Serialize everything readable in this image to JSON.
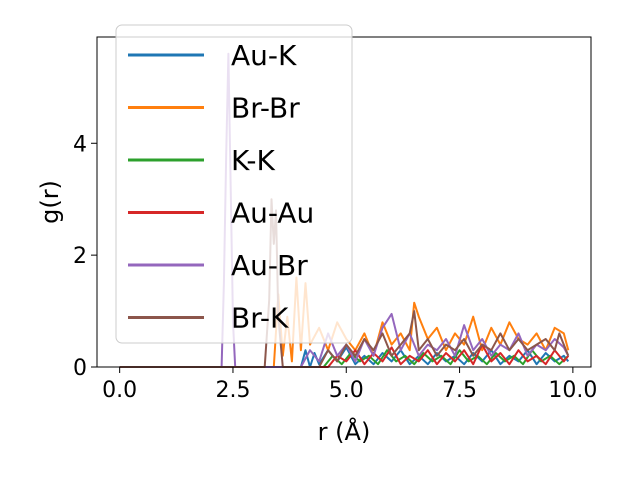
{
  "chart_data": {
    "type": "line",
    "title": "",
    "xlabel": "r (Å)",
    "ylabel": "g(r)",
    "xlim": [
      -0.5,
      10.4
    ],
    "ylim": [
      0,
      5.9
    ],
    "xticks": [
      0.0,
      2.5,
      5.0,
      7.5,
      10.0
    ],
    "xtick_labels": [
      "0.0",
      "2.5",
      "5.0",
      "7.5",
      "10.0"
    ],
    "yticks": [
      0,
      2,
      4
    ],
    "ytick_labels": [
      "0",
      "2",
      "4"
    ],
    "grid": false,
    "legend_position": "top-left",
    "series": [
      {
        "name": "Au-K",
        "color": "#1f77b4",
        "x": [
          0.0,
          4.0,
          4.1,
          4.2,
          4.3,
          4.4,
          4.6,
          4.8,
          5.0,
          5.2,
          5.4,
          5.6,
          5.8,
          6.0,
          6.2,
          6.4,
          6.6,
          6.8,
          7.0,
          7.2,
          7.4,
          7.6,
          7.8,
          8.0,
          8.2,
          8.4,
          8.6,
          8.8,
          9.0,
          9.2,
          9.4,
          9.6,
          9.8,
          9.9
        ],
        "y": [
          0.0,
          0.0,
          0.3,
          0.0,
          0.25,
          0.05,
          0.3,
          0.1,
          0.35,
          0.05,
          0.2,
          0.05,
          0.25,
          0.1,
          0.3,
          0.05,
          0.2,
          0.05,
          0.25,
          0.1,
          0.2,
          0.05,
          0.25,
          0.1,
          0.3,
          0.05,
          0.2,
          0.1,
          0.3,
          0.05,
          0.25,
          0.1,
          0.2,
          0.1
        ]
      },
      {
        "name": "Br-Br",
        "color": "#ff7f0e",
        "x": [
          0.0,
          3.4,
          3.5,
          3.6,
          3.7,
          3.8,
          3.9,
          4.0,
          4.1,
          4.2,
          4.4,
          4.6,
          4.8,
          5.0,
          5.2,
          5.4,
          5.6,
          5.8,
          6.0,
          6.2,
          6.4,
          6.5,
          6.6,
          6.8,
          7.0,
          7.2,
          7.4,
          7.6,
          7.8,
          8.0,
          8.2,
          8.4,
          8.6,
          8.8,
          9.0,
          9.2,
          9.4,
          9.6,
          9.8,
          9.9
        ],
        "y": [
          0.0,
          0.0,
          1.3,
          0.2,
          0.9,
          0.1,
          1.6,
          0.3,
          1.5,
          0.4,
          0.7,
          0.3,
          0.8,
          0.5,
          0.3,
          0.6,
          0.2,
          0.8,
          0.4,
          0.6,
          0.3,
          1.15,
          0.9,
          0.5,
          0.7,
          0.3,
          0.6,
          0.4,
          0.9,
          0.3,
          0.7,
          0.4,
          0.8,
          0.5,
          0.4,
          0.6,
          0.3,
          0.7,
          0.6,
          0.3
        ]
      },
      {
        "name": "K-K",
        "color": "#2ca02c",
        "x": [
          0.0,
          4.5,
          4.7,
          4.9,
          5.1,
          5.3,
          5.5,
          5.7,
          5.9,
          6.1,
          6.3,
          6.5,
          6.7,
          6.9,
          7.1,
          7.3,
          7.5,
          7.7,
          7.9,
          8.1,
          8.3,
          8.5,
          8.7,
          8.9,
          9.1,
          9.3,
          9.5,
          9.7,
          9.9
        ],
        "y": [
          0.0,
          0.0,
          0.2,
          0.05,
          0.25,
          0.1,
          0.2,
          0.05,
          0.3,
          0.1,
          0.2,
          0.05,
          0.25,
          0.1,
          0.2,
          0.05,
          0.3,
          0.1,
          0.2,
          0.05,
          0.25,
          0.1,
          0.2,
          0.05,
          0.3,
          0.1,
          0.2,
          0.05,
          0.2
        ]
      },
      {
        "name": "Au-Au",
        "color": "#d62728",
        "x": [
          0.0,
          4.6,
          4.8,
          5.0,
          5.2,
          5.4,
          5.6,
          5.8,
          6.0,
          6.2,
          6.4,
          6.6,
          6.8,
          7.0,
          7.2,
          7.4,
          7.6,
          7.8,
          8.0,
          8.2,
          8.4,
          8.6,
          8.8,
          9.0,
          9.2,
          9.4,
          9.6,
          9.8,
          9.9
        ],
        "y": [
          0.0,
          0.0,
          0.2,
          0.1,
          0.3,
          0.05,
          0.25,
          0.1,
          0.35,
          0.05,
          0.2,
          0.1,
          0.3,
          0.05,
          0.25,
          0.1,
          0.3,
          0.05,
          0.4,
          0.1,
          0.25,
          0.05,
          0.3,
          0.1,
          0.2,
          0.05,
          0.3,
          0.1,
          0.2
        ]
      },
      {
        "name": "Au-Br",
        "color": "#9467bd",
        "x": [
          0.0,
          2.25,
          2.3,
          2.35,
          2.4,
          2.45,
          2.5,
          2.55,
          3.0,
          4.0,
          4.2,
          4.4,
          4.6,
          4.8,
          5.0,
          5.2,
          5.4,
          5.6,
          5.8,
          6.0,
          6.2,
          6.4,
          6.6,
          6.8,
          7.0,
          7.2,
          7.4,
          7.6,
          7.8,
          8.0,
          8.2,
          8.4,
          8.6,
          8.8,
          9.0,
          9.2,
          9.4,
          9.6,
          9.8,
          9.9
        ],
        "y": [
          0.0,
          0.0,
          1.5,
          3.8,
          5.6,
          3.2,
          0.8,
          0.0,
          0.0,
          0.0,
          0.3,
          0.1,
          0.6,
          0.2,
          0.4,
          0.1,
          0.5,
          0.2,
          0.7,
          0.95,
          0.3,
          0.6,
          0.2,
          0.4,
          0.3,
          0.5,
          0.2,
          0.75,
          0.3,
          0.5,
          0.2,
          0.4,
          0.3,
          0.6,
          0.2,
          0.4,
          0.3,
          0.5,
          0.35,
          0.2
        ]
      },
      {
        "name": "Br-K",
        "color": "#8c564b",
        "x": [
          0.0,
          3.2,
          3.3,
          3.35,
          3.4,
          3.45,
          3.5,
          3.6,
          4.0,
          4.4,
          4.6,
          4.8,
          5.0,
          5.2,
          5.4,
          5.6,
          5.8,
          6.0,
          6.2,
          6.4,
          6.5,
          6.6,
          6.8,
          7.0,
          7.2,
          7.4,
          7.6,
          7.8,
          8.0,
          8.2,
          8.4,
          8.6,
          8.8,
          9.0,
          9.2,
          9.4,
          9.6,
          9.7,
          9.8,
          9.9
        ],
        "y": [
          0.0,
          0.0,
          1.2,
          3.0,
          2.2,
          2.8,
          0.9,
          0.0,
          0.0,
          0.0,
          0.3,
          0.1,
          0.4,
          0.2,
          0.5,
          0.3,
          0.6,
          0.2,
          0.4,
          0.6,
          1.0,
          0.3,
          0.5,
          0.2,
          0.4,
          0.3,
          0.5,
          0.2,
          0.4,
          0.3,
          0.6,
          0.3,
          0.5,
          0.3,
          0.4,
          0.5,
          0.3,
          0.6,
          0.4,
          0.2
        ]
      }
    ]
  }
}
